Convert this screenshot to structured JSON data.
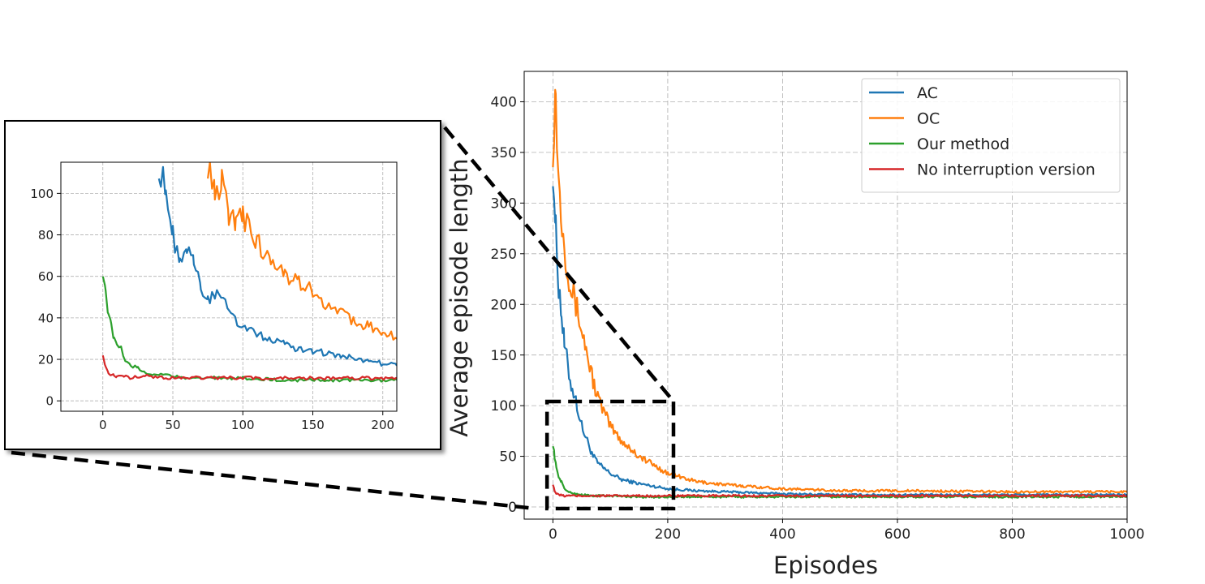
{
  "chart_data": [
    {
      "type": "line",
      "xlabel": "Episodes",
      "ylabel": "Average episode length",
      "xlim": [
        -50,
        1000
      ],
      "ylim": [
        -12,
        430
      ],
      "xticks": [
        "0",
        "200",
        "400",
        "600",
        "800",
        "1000"
      ],
      "yticks": [
        "0",
        "50",
        "100",
        "150",
        "200",
        "250",
        "300",
        "350",
        "400"
      ],
      "xtick_values": [
        0,
        200,
        400,
        600,
        800,
        1000
      ],
      "ytick_values": [
        0,
        50,
        100,
        150,
        200,
        250,
        300,
        350,
        400
      ],
      "grid": true,
      "legend_position": "top-right",
      "series": [
        {
          "name": "AC",
          "color": "#1f77b4",
          "x": [
            0,
            5,
            10,
            15,
            20,
            30,
            40,
            50,
            60,
            70,
            80,
            100,
            120,
            150,
            200,
            250,
            300,
            400,
            500,
            600,
            800,
            1000
          ],
          "values": [
            340,
            270,
            220,
            190,
            160,
            125,
            105,
            80,
            65,
            50,
            42,
            33,
            27,
            23,
            18,
            16,
            15,
            13,
            12,
            12,
            12,
            12
          ]
        },
        {
          "name": "OC",
          "color": "#ff7f0e",
          "x": [
            0,
            5,
            10,
            20,
            30,
            40,
            50,
            60,
            70,
            80,
            100,
            120,
            150,
            180,
            200,
            250,
            300,
            400,
            500,
            600,
            800,
            1000
          ],
          "values": [
            360,
            410,
            320,
            260,
            220,
            200,
            175,
            150,
            125,
            105,
            80,
            65,
            50,
            40,
            33,
            25,
            22,
            18,
            16,
            16,
            15,
            15
          ]
        },
        {
          "name": "Our method",
          "color": "#2ca02c",
          "x": [
            0,
            3,
            6,
            10,
            15,
            20,
            30,
            40,
            50,
            70,
            100,
            150,
            200,
            300,
            400,
            600,
            800,
            1000
          ],
          "values": [
            63,
            50,
            38,
            30,
            25,
            18,
            14,
            13,
            12,
            11,
            11,
            10,
            10,
            10,
            10,
            10,
            10,
            10
          ]
        },
        {
          "name": "No interruption version",
          "color": "#d62728",
          "x": [
            0,
            3,
            6,
            10,
            20,
            30,
            50,
            100,
            150,
            200,
            300,
            400,
            600,
            800,
            1000
          ],
          "values": [
            23,
            16,
            13,
            12,
            11,
            11,
            11,
            11,
            11,
            11,
            11,
            11,
            11,
            11,
            11
          ]
        }
      ]
    },
    {
      "type": "line",
      "xlim": [
        -30,
        210
      ],
      "ylim": [
        -5,
        115
      ],
      "xticks": [
        "0",
        "50",
        "100",
        "150",
        "200"
      ],
      "yticks": [
        "0",
        "20",
        "40",
        "60",
        "80",
        "100"
      ],
      "xtick_values": [
        0,
        50,
        100,
        150,
        200
      ],
      "ytick_values": [
        0,
        20,
        40,
        60,
        80,
        100
      ],
      "grid": true,
      "series": [
        {
          "color": "#1f77b4",
          "x": [
            40,
            45,
            50,
            55,
            60,
            65,
            70,
            75,
            80,
            90,
            100,
            110,
            120,
            130,
            140,
            150,
            160,
            170,
            180,
            190,
            200,
            210
          ],
          "values": [
            115,
            100,
            80,
            66,
            72,
            66,
            55,
            50,
            51,
            44,
            35,
            32,
            29,
            27,
            25,
            24,
            23,
            22,
            21,
            19,
            18,
            17
          ]
        },
        {
          "name": "OC",
          "color": "#ff7f0e",
          "x": [
            75,
            80,
            85,
            90,
            95,
            100,
            110,
            120,
            130,
            140,
            150,
            160,
            170,
            180,
            190,
            200,
            210
          ],
          "values": [
            115,
            100,
            107,
            86,
            88,
            88,
            77,
            68,
            60,
            57,
            53,
            45,
            42,
            38,
            36,
            34,
            30
          ]
        },
        {
          "name": "Our method",
          "color": "#2ca02c",
          "x": [
            0,
            2,
            4,
            6,
            8,
            10,
            13,
            16,
            20,
            25,
            30,
            35,
            40,
            50,
            60,
            80,
            100,
            130,
            160,
            190,
            210
          ],
          "values": [
            63,
            53,
            40,
            37,
            30,
            28,
            25,
            20,
            17,
            16,
            14,
            13,
            13,
            12,
            11,
            11,
            11,
            10,
            10,
            10,
            10
          ]
        },
        {
          "name": "No interruption version",
          "color": "#d62728",
          "x": [
            0,
            2,
            4,
            6,
            8,
            10,
            15,
            20,
            30,
            50,
            70,
            100,
            130,
            160,
            190,
            210
          ],
          "values": [
            23,
            16,
            13,
            13,
            12,
            12,
            12,
            11,
            12,
            11,
            11,
            11,
            11,
            11,
            11,
            11
          ]
        }
      ]
    }
  ]
}
